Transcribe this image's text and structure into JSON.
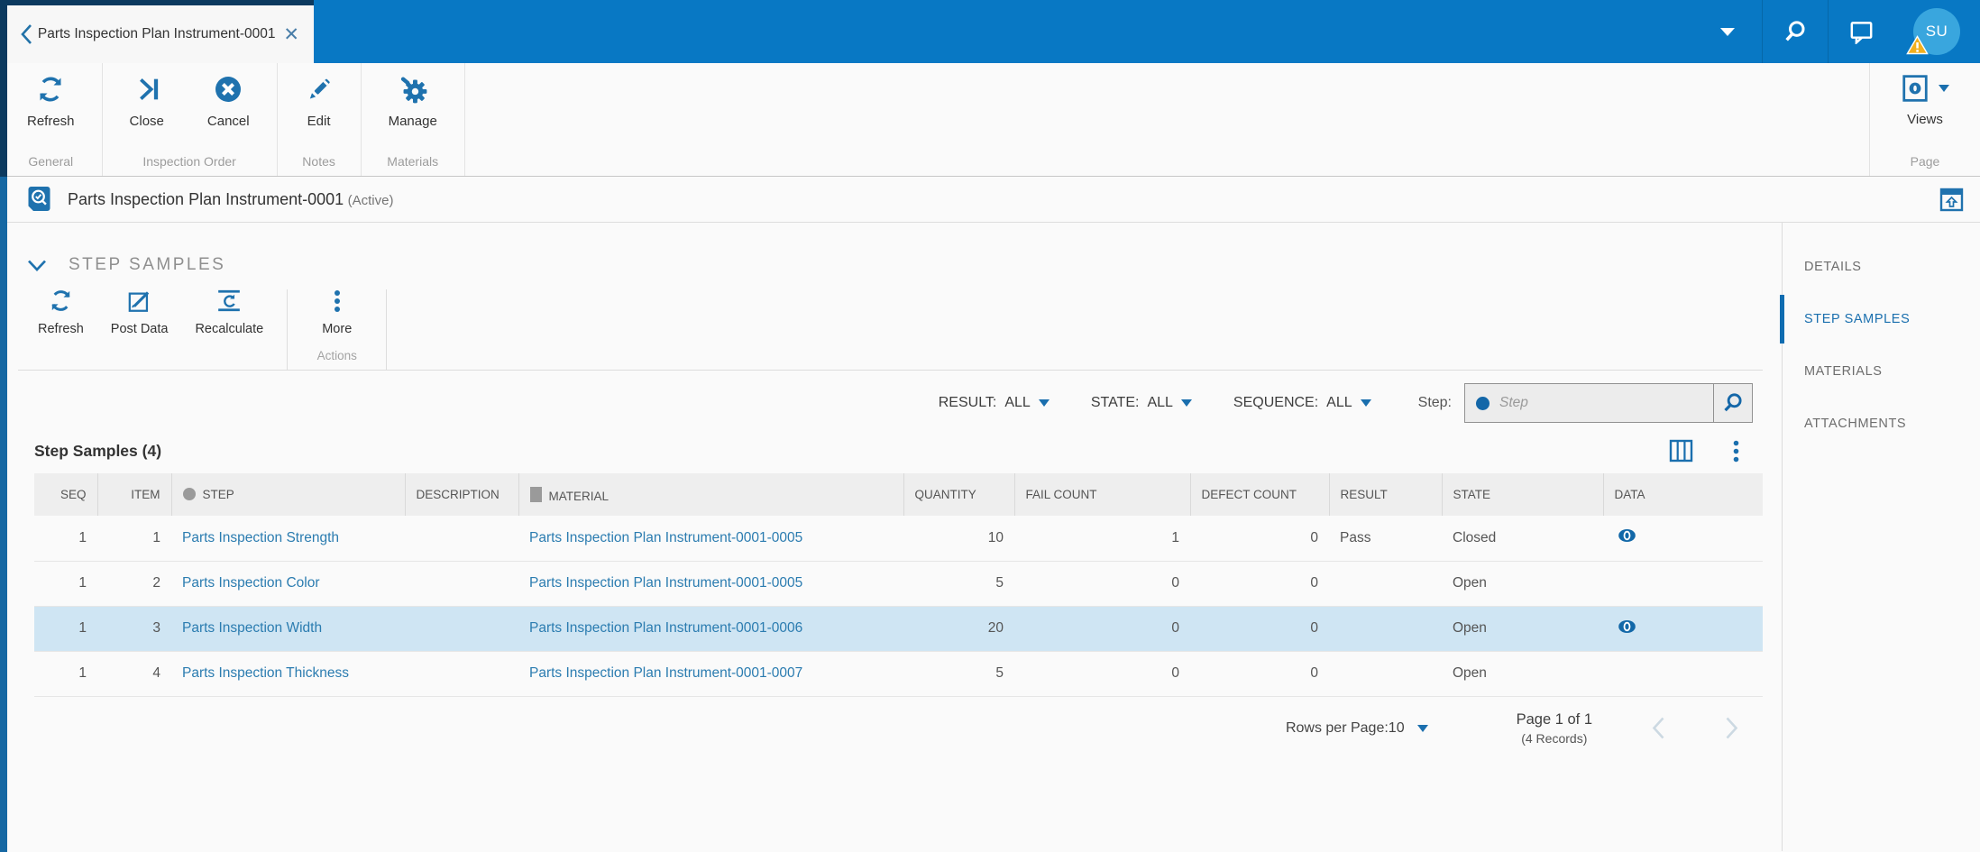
{
  "tab": {
    "title": "Parts Inspection Plan Instrument-0001"
  },
  "topbar": {
    "avatar_initials": "SU"
  },
  "toolbar": {
    "buttons": [
      {
        "label": "Refresh"
      },
      {
        "label": "Close"
      },
      {
        "label": "Cancel"
      },
      {
        "label": "Edit"
      },
      {
        "label": "Manage"
      }
    ],
    "groups": [
      {
        "label": "General"
      },
      {
        "label": "Inspection Order"
      },
      {
        "label": "Notes"
      },
      {
        "label": "Materials"
      }
    ],
    "views_label": "Views",
    "page_group_label": "Page"
  },
  "title_bar": {
    "title": "Parts Inspection Plan Instrument-0001",
    "status": "(Active)"
  },
  "section": {
    "title": "STEP SAMPLES"
  },
  "actions": {
    "buttons": [
      {
        "label": "Refresh"
      },
      {
        "label": "Post Data"
      },
      {
        "label": "Recalculate"
      },
      {
        "label": "More"
      }
    ],
    "group_label": "Actions"
  },
  "filters": {
    "result_label": "RESULT:",
    "result_value": "ALL",
    "state_label": "STATE:",
    "state_value": "ALL",
    "sequence_label": "SEQUENCE:",
    "sequence_value": "ALL",
    "step_label": "Step:",
    "step_placeholder": "Step"
  },
  "table": {
    "title": "Step Samples (4)",
    "columns": [
      "SEQ",
      "ITEM",
      "STEP",
      "DESCRIPTION",
      "MATERIAL",
      "QUANTITY",
      "FAIL COUNT",
      "DEFECT COUNT",
      "RESULT",
      "STATE",
      "DATA"
    ],
    "rows": [
      {
        "seq": "1",
        "item": "1",
        "step": "Parts Inspection Strength",
        "description": "",
        "material": "Parts Inspection Plan Instrument-0001-0005",
        "quantity": "10",
        "fail_count": "1",
        "defect_count": "0",
        "result": "Pass",
        "state": "Closed",
        "has_data": true,
        "highlighted": false
      },
      {
        "seq": "1",
        "item": "2",
        "step": "Parts Inspection Color",
        "description": "",
        "material": "Parts Inspection Plan Instrument-0001-0005",
        "quantity": "5",
        "fail_count": "0",
        "defect_count": "0",
        "result": "",
        "state": "Open",
        "has_data": false,
        "highlighted": false
      },
      {
        "seq": "1",
        "item": "3",
        "step": "Parts Inspection Width",
        "description": "",
        "material": "Parts Inspection Plan Instrument-0001-0006",
        "quantity": "20",
        "fail_count": "0",
        "defect_count": "0",
        "result": "",
        "state": "Open",
        "has_data": true,
        "highlighted": true
      },
      {
        "seq": "1",
        "item": "4",
        "step": "Parts Inspection Thickness",
        "description": "",
        "material": "Parts Inspection Plan Instrument-0001-0007",
        "quantity": "5",
        "fail_count": "0",
        "defect_count": "0",
        "result": "",
        "state": "Open",
        "has_data": false,
        "highlighted": false
      }
    ]
  },
  "pagination": {
    "rows_per_page_label": "Rows per Page:",
    "rows_per_page_value": "10",
    "page_info": "Page 1 of 1",
    "records_info": "(4 Records)"
  },
  "sidebar": {
    "items": [
      {
        "label": "DETAILS",
        "active": false
      },
      {
        "label": "STEP SAMPLES",
        "active": true
      },
      {
        "label": "MATERIALS",
        "active": false
      },
      {
        "label": "ATTACHMENTS",
        "active": false
      }
    ]
  },
  "colors": {
    "primary_blue": "#0878c4",
    "dark_navy": "#0c3a5f",
    "accent_blue": "#1f72ae",
    "link_blue": "#2b7cb0",
    "row_highlight": "#cfe5f3",
    "avatar_blue": "#39a6de",
    "warning_yellow": "#f2b01e",
    "header_gray": "#eeeeee"
  }
}
